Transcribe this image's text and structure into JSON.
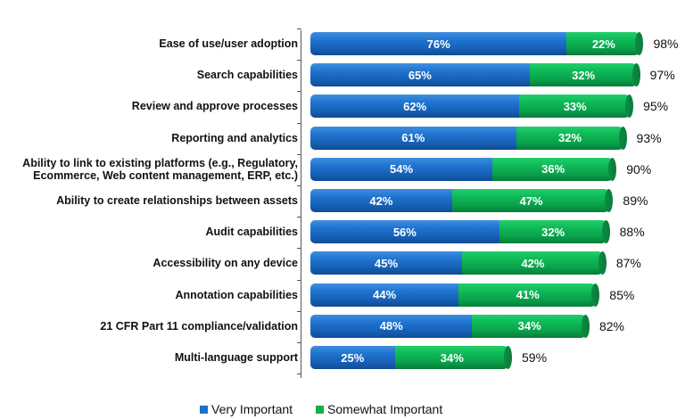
{
  "chart_data": {
    "type": "bar",
    "orientation": "horizontal",
    "stacked": true,
    "title": "",
    "xlabel": "",
    "ylabel": "",
    "xlim": [
      0,
      100
    ],
    "grid": false,
    "legend_position": "bottom",
    "categories": [
      "Ease of use/user adoption",
      "Search capabilities",
      "Review and approve processes",
      "Reporting and analytics",
      "Ability to link to existing platforms (e.g., Regulatory, Ecommerce, Web content management, ERP, etc.)",
      "Ability to create relationships between assets",
      "Audit capabilities",
      "Accessibility on any device",
      "Annotation capabilities",
      "21 CFR Part 11 compliance/validation",
      "Multi-language support"
    ],
    "series": [
      {
        "name": "Very Important",
        "color": "#1f6fc8",
        "values": [
          76,
          65,
          62,
          61,
          54,
          42,
          56,
          45,
          44,
          48,
          25
        ]
      },
      {
        "name": "Somewhat Important",
        "color": "#0db14b",
        "values": [
          22,
          32,
          33,
          32,
          36,
          47,
          32,
          42,
          41,
          34,
          34
        ]
      }
    ],
    "totals": [
      98,
      97,
      95,
      93,
      90,
      89,
      88,
      87,
      85,
      82,
      59
    ]
  },
  "rows": [
    {
      "label_line1": "Ease of use/user adoption",
      "label_line2": "",
      "very": "76%",
      "somewhat": "22%",
      "total": "98%"
    },
    {
      "label_line1": "Search capabilities",
      "label_line2": "",
      "very": "65%",
      "somewhat": "32%",
      "total": "97%"
    },
    {
      "label_line1": "Review and approve processes",
      "label_line2": "",
      "very": "62%",
      "somewhat": "33%",
      "total": "95%"
    },
    {
      "label_line1": "Reporting and analytics",
      "label_line2": "",
      "very": "61%",
      "somewhat": "32%",
      "total": "93%"
    },
    {
      "label_line1": "Ability to link to existing platforms (e.g., Regulatory,",
      "label_line2": "Ecommerce, Web content management, ERP, etc.)",
      "very": "54%",
      "somewhat": "36%",
      "total": "90%"
    },
    {
      "label_line1": "Ability to create relationships between assets",
      "label_line2": "",
      "very": "42%",
      "somewhat": "47%",
      "total": "89%"
    },
    {
      "label_line1": "Audit capabilities",
      "label_line2": "",
      "very": "56%",
      "somewhat": "32%",
      "total": "88%"
    },
    {
      "label_line1": "Accessibility on any device",
      "label_line2": "",
      "very": "45%",
      "somewhat": "42%",
      "total": "87%"
    },
    {
      "label_line1": "Annotation capabilities",
      "label_line2": "",
      "very": "44%",
      "somewhat": "41%",
      "total": "85%"
    },
    {
      "label_line1": "21 CFR Part 11 compliance/validation",
      "label_line2": "",
      "very": "48%",
      "somewhat": "34%",
      "total": "82%"
    },
    {
      "label_line1": "Multi-language support",
      "label_line2": "",
      "very": "25%",
      "somewhat": "34%",
      "total": "59%"
    }
  ],
  "legend": {
    "items": [
      {
        "label": "Very Important",
        "color": "#1f6fc8"
      },
      {
        "label": "Somewhat Important",
        "color": "#0db14b"
      }
    ]
  }
}
